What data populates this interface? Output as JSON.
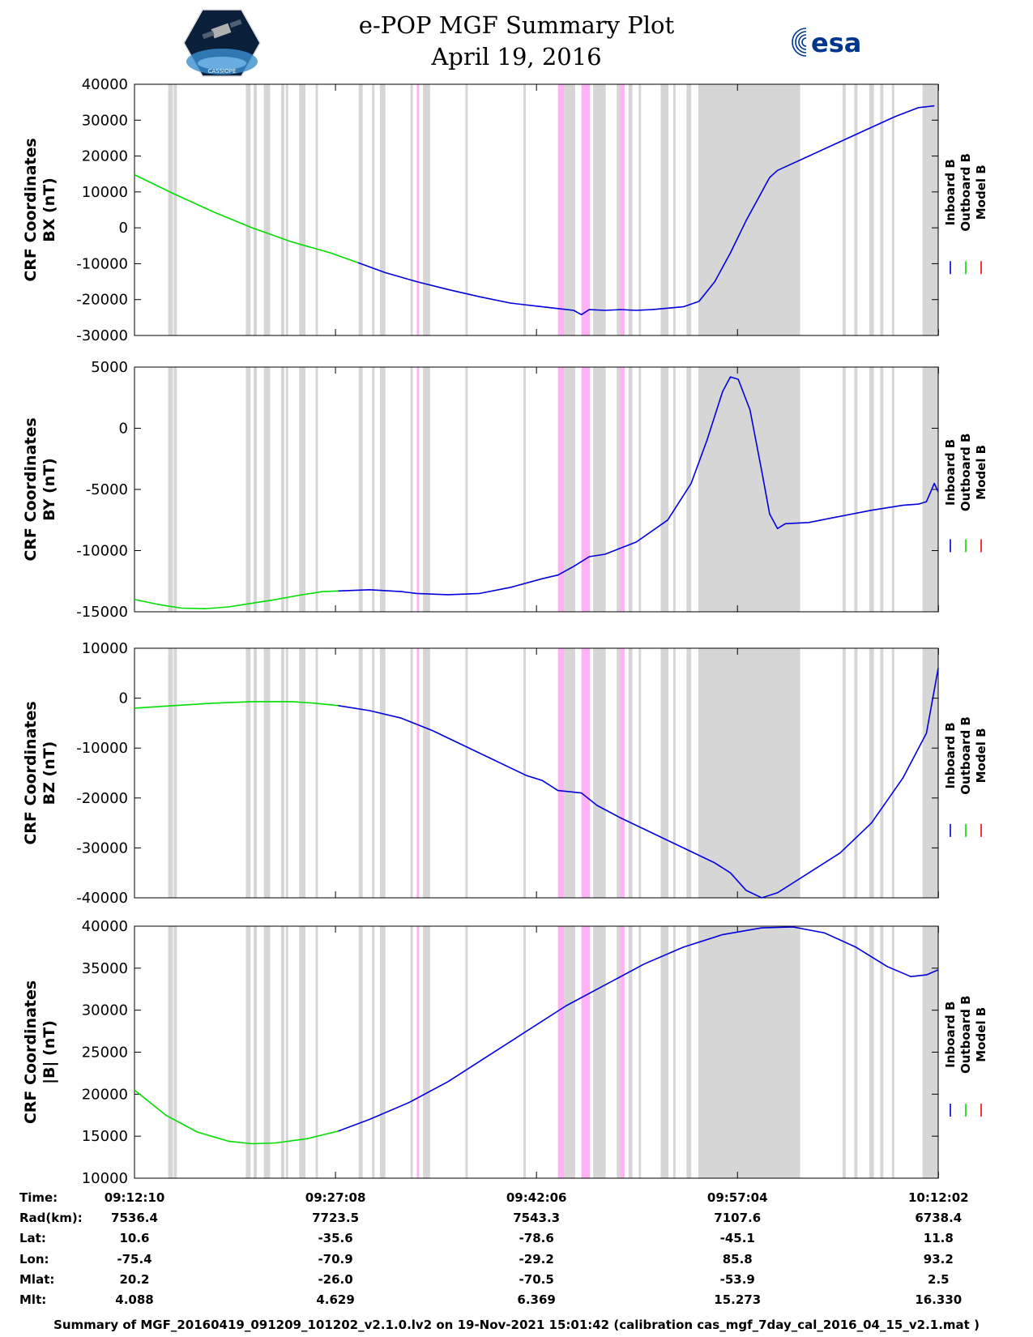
{
  "header": {
    "title": "e-POP MGF Summary Plot",
    "date": "April 19, 2016",
    "left_logo": "CASSIOPE",
    "right_logo": "esa"
  },
  "colors": {
    "inboard": "#0000dd",
    "outboard": "#00dd00",
    "model": "#ff0000",
    "gray_band": "#d6d6d6",
    "pink_band": "#ffb3f5"
  },
  "legend": [
    "Inboard B",
    "Outboard B",
    "Model B"
  ],
  "chart_data": [
    {
      "type": "line",
      "ylabel_line1": "CRF Coordinates",
      "ylabel_line2": "BX (nT)",
      "ylim": [
        -30000,
        40000
      ],
      "yticks": [
        -30000,
        -20000,
        -10000,
        0,
        10000,
        20000,
        30000,
        40000
      ],
      "series": [
        {
          "name": "Outboard B",
          "color": "#00dd00",
          "points": [
            [
              0,
              14800
            ],
            [
              5,
              9500
            ],
            [
              10,
              4500
            ],
            [
              15,
              0
            ],
            [
              20,
              -3900
            ],
            [
              25,
              -7000
            ],
            [
              28.5,
              -9700
            ]
          ]
        },
        {
          "name": "Inboard B",
          "color": "#0000dd",
          "points": [
            [
              28.5,
              -9700
            ],
            [
              32,
              -12500
            ],
            [
              36,
              -15000
            ],
            [
              40,
              -17200
            ],
            [
              44,
              -19200
            ],
            [
              48,
              -21000
            ],
            [
              52,
              -22000
            ],
            [
              54,
              -22500
            ],
            [
              56,
              -23000
            ],
            [
              57,
              -24200
            ],
            [
              58,
              -22800
            ],
            [
              60,
              -23000
            ],
            [
              62,
              -22800
            ],
            [
              64,
              -23000
            ],
            [
              66,
              -22800
            ],
            [
              70,
              -22000
            ],
            [
              72,
              -20500
            ],
            [
              74,
              -15000
            ],
            [
              76,
              -7000
            ],
            [
              78,
              2000
            ],
            [
              80,
              10000
            ],
            [
              81,
              14000
            ],
            [
              82,
              16000
            ],
            [
              86,
              20000
            ],
            [
              90,
              24000
            ],
            [
              94,
              28000
            ],
            [
              97,
              31000
            ],
            [
              100,
              33500
            ],
            [
              102,
              34000
            ]
          ]
        }
      ]
    },
    {
      "type": "line",
      "ylabel_line1": "CRF Coordinates",
      "ylabel_line2": "BY (nT)",
      "ylim": [
        -15000,
        5000
      ],
      "yticks": [
        -15000,
        -10000,
        -5000,
        0,
        5000
      ],
      "series": [
        {
          "name": "Outboard B",
          "color": "#00dd00",
          "points": [
            [
              0,
              -14000
            ],
            [
              3,
              -14400
            ],
            [
              6,
              -14700
            ],
            [
              9,
              -14750
            ],
            [
              12,
              -14600
            ],
            [
              15,
              -14300
            ],
            [
              18,
              -14000
            ],
            [
              21,
              -13650
            ],
            [
              24,
              -13350
            ],
            [
              26,
              -13300
            ]
          ]
        },
        {
          "name": "Inboard B",
          "color": "#0000dd",
          "points": [
            [
              26,
              -13300
            ],
            [
              30,
              -13200
            ],
            [
              34,
              -13350
            ],
            [
              36,
              -13500
            ],
            [
              40,
              -13600
            ],
            [
              44,
              -13500
            ],
            [
              48,
              -13000
            ],
            [
              52,
              -12300
            ],
            [
              54,
              -12000
            ],
            [
              56,
              -11300
            ],
            [
              58,
              -10500
            ],
            [
              60,
              -10300
            ],
            [
              64,
              -9300
            ],
            [
              68,
              -7500
            ],
            [
              71,
              -4500
            ],
            [
              73,
              -1000
            ],
            [
              75,
              3000
            ],
            [
              76,
              4200
            ],
            [
              77,
              4000
            ],
            [
              78.5,
              1500
            ],
            [
              80,
              -3500
            ],
            [
              81,
              -7000
            ],
            [
              82,
              -8200
            ],
            [
              83,
              -7800
            ],
            [
              86,
              -7700
            ],
            [
              90,
              -7200
            ],
            [
              94,
              -6700
            ],
            [
              98,
              -6300
            ],
            [
              100,
              -6200
            ],
            [
              101,
              -6000
            ],
            [
              102,
              -4500
            ],
            [
              102.5,
              -5200
            ]
          ]
        }
      ]
    },
    {
      "type": "line",
      "ylabel_line1": "CRF Coordinates",
      "ylabel_line2": "BZ (nT)",
      "ylim": [
        -40000,
        10000
      ],
      "yticks": [
        -40000,
        -30000,
        -20000,
        -10000,
        0,
        10000
      ],
      "series": [
        {
          "name": "Outboard B",
          "color": "#00dd00",
          "points": [
            [
              0,
              -2000
            ],
            [
              5,
              -1500
            ],
            [
              10,
              -1000
            ],
            [
              15,
              -700
            ],
            [
              20,
              -700
            ],
            [
              23,
              -1000
            ],
            [
              26,
              -1500
            ]
          ]
        },
        {
          "name": "Inboard B",
          "color": "#0000dd",
          "points": [
            [
              26,
              -1500
            ],
            [
              30,
              -2500
            ],
            [
              34,
              -4000
            ],
            [
              38,
              -6500
            ],
            [
              42,
              -9500
            ],
            [
              46,
              -12500
            ],
            [
              50,
              -15500
            ],
            [
              52,
              -16500
            ],
            [
              54,
              -18500
            ],
            [
              57,
              -19000
            ],
            [
              59,
              -21500
            ],
            [
              62,
              -24000
            ],
            [
              66,
              -27000
            ],
            [
              70,
              -30000
            ],
            [
              74,
              -33000
            ],
            [
              76,
              -35000
            ],
            [
              78,
              -38500
            ],
            [
              80,
              -40000
            ],
            [
              82,
              -39000
            ],
            [
              84,
              -37000
            ],
            [
              86,
              -35000
            ],
            [
              90,
              -31000
            ],
            [
              94,
              -25000
            ],
            [
              98,
              -16000
            ],
            [
              101,
              -7000
            ],
            [
              102.5,
              6000
            ]
          ]
        }
      ]
    },
    {
      "type": "line",
      "ylabel_line1": "CRF Coordinates",
      "ylabel_line2": "|B| (nT)",
      "ylim": [
        10000,
        40000
      ],
      "yticks": [
        10000,
        15000,
        20000,
        25000,
        30000,
        35000,
        40000
      ],
      "series": [
        {
          "name": "Outboard B",
          "color": "#00dd00",
          "points": [
            [
              0,
              20500
            ],
            [
              4,
              17500
            ],
            [
              8,
              15500
            ],
            [
              12,
              14400
            ],
            [
              15,
              14100
            ],
            [
              18,
              14200
            ],
            [
              22,
              14700
            ],
            [
              26,
              15600
            ]
          ]
        },
        {
          "name": "Inboard B",
          "color": "#0000dd",
          "points": [
            [
              26,
              15600
            ],
            [
              30,
              17000
            ],
            [
              35,
              19000
            ],
            [
              40,
              21500
            ],
            [
              45,
              24500
            ],
            [
              50,
              27500
            ],
            [
              55,
              30500
            ],
            [
              60,
              33000
            ],
            [
              65,
              35500
            ],
            [
              70,
              37500
            ],
            [
              75,
              39000
            ],
            [
              80,
              39800
            ],
            [
              84,
              39900
            ],
            [
              88,
              39200
            ],
            [
              92,
              37500
            ],
            [
              96,
              35200
            ],
            [
              99,
              34000
            ],
            [
              101,
              34200
            ],
            [
              102.5,
              34800
            ]
          ]
        }
      ]
    }
  ],
  "time_axis": {
    "xlim": [
      0,
      102.5
    ],
    "tick_positions_min": [
      0,
      25.6333,
      51.2667,
      76.9,
      102.5333
    ],
    "gray_bands_min": [
      [
        4.3,
        4.9
      ],
      [
        5.0,
        5.4
      ],
      [
        14.2,
        14.8
      ],
      [
        15.2,
        15.6
      ],
      [
        16.5,
        17.3
      ],
      [
        18.7,
        19.1
      ],
      [
        19.3,
        19.6
      ],
      [
        21.0,
        21.8
      ],
      [
        23.1,
        23.4
      ],
      [
        28.6,
        29.1
      ],
      [
        30.3,
        30.6
      ],
      [
        31.3,
        32.0
      ],
      [
        35.2,
        35.5
      ],
      [
        36.8,
        37.7
      ],
      [
        42.2,
        42.5
      ],
      [
        49.6,
        49.9
      ],
      [
        54.8,
        56.2
      ],
      [
        58.5,
        60.1
      ],
      [
        61.5,
        62.0
      ],
      [
        63.0,
        63.5
      ],
      [
        64.3,
        64.6
      ],
      [
        67.1,
        68.1
      ],
      [
        68.7,
        69.0
      ],
      [
        70.4,
        71.0
      ],
      [
        71.9,
        84.9
      ],
      [
        90.3,
        90.7
      ],
      [
        91.8,
        92.2
      ],
      [
        93.7,
        94.3
      ],
      [
        95.1,
        95.5
      ],
      [
        96.6,
        96.9
      ],
      [
        100.5,
        102.5
      ]
    ],
    "pink_bands_min": [
      [
        54.0,
        54.8
      ],
      [
        57.0,
        58.1
      ],
      [
        62.0,
        62.5
      ],
      [
        36.0,
        36.3
      ]
    ]
  },
  "table": {
    "labels": [
      "Time:",
      "Rad(km):",
      "Lat:",
      "Lon:",
      "Mlat:",
      "Mlt:"
    ],
    "columns": [
      [
        "09:12:10",
        "7536.4",
        "10.6",
        "-75.4",
        "20.2",
        "4.088"
      ],
      [
        "09:27:08",
        "7723.5",
        "-35.6",
        "-70.9",
        "-26.0",
        "4.629"
      ],
      [
        "09:42:06",
        "7543.3",
        "-78.6",
        "-29.2",
        "-70.5",
        "6.369"
      ],
      [
        "09:57:04",
        "7107.6",
        "-45.1",
        "85.8",
        "-53.9",
        "15.273"
      ],
      [
        "10:12:02",
        "6738.4",
        "11.8",
        "93.2",
        "2.5",
        "16.330"
      ]
    ]
  },
  "footer": "Summary of MGF_20160419_091209_101202_v2.1.0.lv2 on 19-Nov-2021 15:01:42 (calibration cas_mgf_7day_cal_2016_04_15_v2.1.mat )"
}
